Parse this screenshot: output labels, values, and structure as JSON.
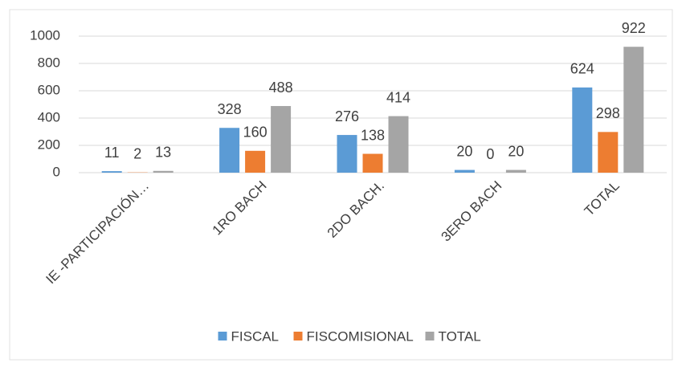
{
  "chart_data": {
    "type": "bar",
    "categories": [
      "IE -PARTICIPACIÓN…",
      "1RO BACH",
      "2DO BACH.",
      "3ERO BACH",
      "TOTAL"
    ],
    "series": [
      {
        "name": "FISCAL",
        "color": "#5b9bd5",
        "values": [
          11,
          328,
          276,
          20,
          624
        ]
      },
      {
        "name": "FISCOMISIONAL",
        "color": "#ed7d31",
        "values": [
          2,
          160,
          138,
          0,
          298
        ]
      },
      {
        "name": "TOTAL",
        "color": "#a5a5a5",
        "values": [
          13,
          488,
          414,
          20,
          922
        ]
      }
    ],
    "ylim": [
      0,
      1000
    ],
    "yticks": [
      0,
      200,
      400,
      600,
      800,
      1000
    ],
    "grid": true,
    "legend": "bottom"
  }
}
